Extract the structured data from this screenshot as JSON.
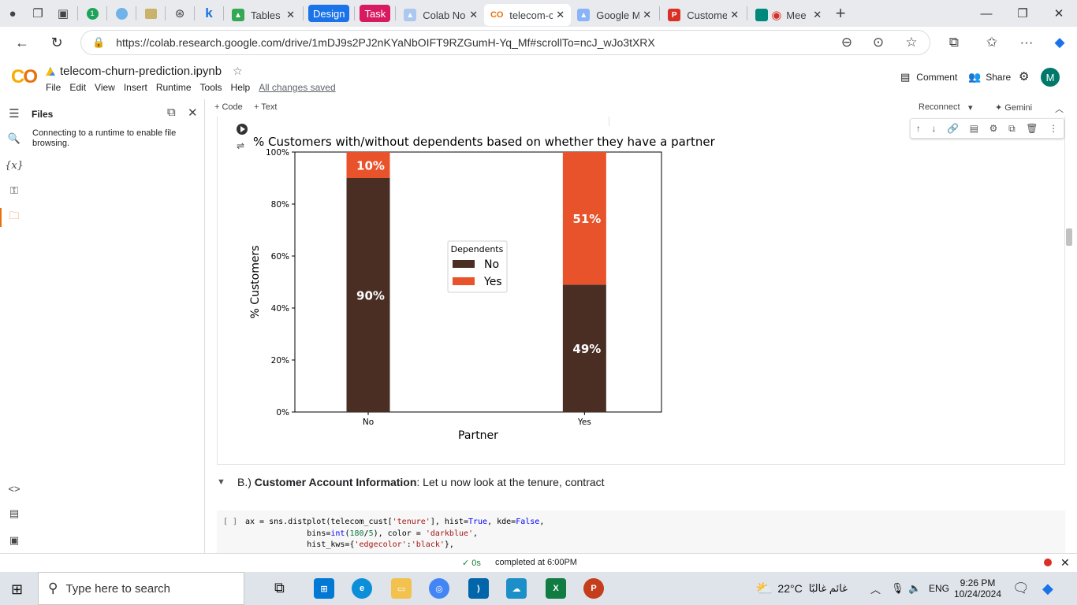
{
  "browser": {
    "tabs": [
      {
        "label": "Tables - C",
        "color": "#4285f4",
        "glyph": "▲"
      },
      {
        "label": "Design",
        "pill": true,
        "color": "#1a73e8"
      },
      {
        "label": "Task",
        "pill": true,
        "color": "#d81b60"
      },
      {
        "label": "Colab No",
        "color": "#aac8f0",
        "glyph": "▲"
      },
      {
        "label": "telecom-c",
        "active": true,
        "color": "#f9ab00",
        "glyph": "co"
      },
      {
        "label": "Google M",
        "color": "#8ab4f8",
        "glyph": "▲"
      },
      {
        "label": "Custome",
        "color": "#d93025",
        "glyph": "P"
      },
      {
        "label": "Mee",
        "color": "#d93025",
        "glyph": "●"
      }
    ],
    "url": "https://colab.research.google.com/drive/1mDJ9s2PJ2nKYaNbOIFT9RZGumH-Yq_Mf#scrollTo=ncJ_wJo3tXRX"
  },
  "colab": {
    "notebook_title": "telecom-churn-prediction.ipynb",
    "menu": [
      "File",
      "Edit",
      "View",
      "Insert",
      "Runtime",
      "Tools",
      "Help"
    ],
    "saved_status": "All changes saved",
    "comment_label": "Comment",
    "share_label": "Share",
    "avatar_letter": "M",
    "add_code": "+ Code",
    "add_text": "+ Text",
    "reconnect": "Reconnect",
    "gemini": "✦ Gemini"
  },
  "files_panel": {
    "title": "Files",
    "message": "Connecting to a runtime to enable file browsing."
  },
  "chart_data": {
    "type": "bar",
    "stacked": true,
    "title": "% Customers with/without dependents based on whether they have a partner",
    "xlabel": "Partner",
    "ylabel": "% Customers",
    "categories": [
      "No",
      "Yes"
    ],
    "ylim": [
      0,
      100
    ],
    "yticks": [
      "0%",
      "20%",
      "40%",
      "60%",
      "80%",
      "100%"
    ],
    "legend_title": "Dependents",
    "legend_position": "center",
    "series": [
      {
        "name": "No",
        "values": [
          90,
          49
        ],
        "labels": [
          "90%",
          "49%"
        ],
        "color": "#4a2e24"
      },
      {
        "name": "Yes",
        "values": [
          10,
          51
        ],
        "labels": [
          "10%",
          "51%"
        ],
        "color": "#e8532b"
      }
    ]
  },
  "section": {
    "prefix": "B.) ",
    "bold": "Customer Account Information",
    "rest": ": Let u now look at the tenure, contract"
  },
  "code": {
    "bracket": "[ ]"
  },
  "status": {
    "check": "✓ 0s",
    "text": "completed at 6:00PM"
  },
  "taskbar": {
    "search_placeholder": "Type here to search",
    "weather": "22°C",
    "weather_text": "غائم غالبًا",
    "lang": "ENG",
    "time": "9:26 PM",
    "date": "10/24/2024"
  }
}
